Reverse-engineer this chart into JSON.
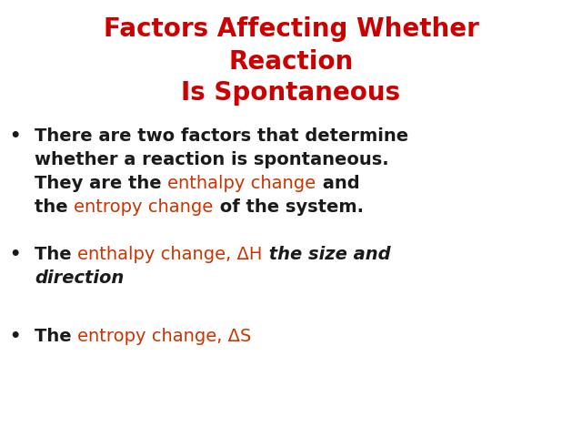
{
  "bg_color": "#ffffff",
  "title_line1": "Factors Affecting Whether",
  "title_line2": "Reaction",
  "title_line3": "Is Spontaneous",
  "title_color": "#cc0000",
  "title_fontsize": 20,
  "black": "#1a1a1a",
  "red": "#cc3300",
  "fontsize": 14.0,
  "bullet_char": "•"
}
